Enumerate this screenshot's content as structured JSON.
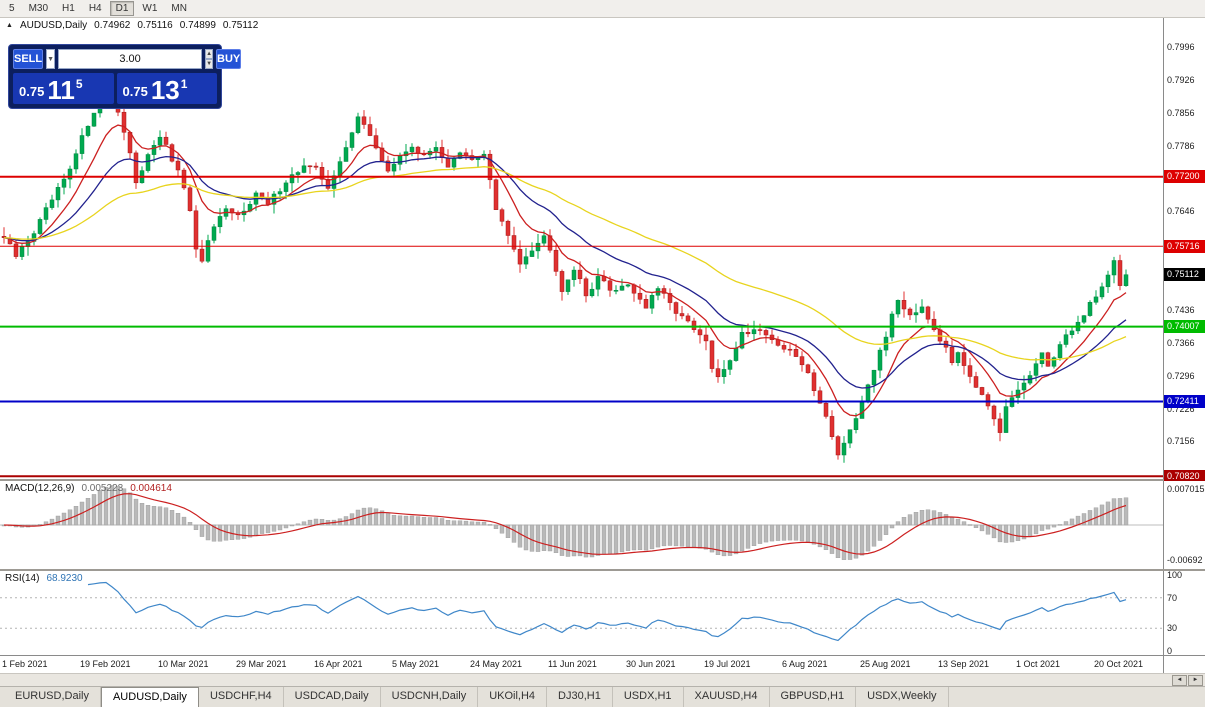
{
  "toolbar": {
    "timeframes": [
      {
        "label": "5",
        "active": false
      },
      {
        "label": "M30",
        "active": false
      },
      {
        "label": "H1",
        "active": false
      },
      {
        "label": "H4",
        "active": false
      },
      {
        "label": "D1",
        "active": true
      },
      {
        "label": "W1",
        "active": false
      },
      {
        "label": "MN",
        "active": false
      }
    ]
  },
  "chart": {
    "symbol_title": "AUDUSD,Daily",
    "ohlc": {
      "open": "0.74962",
      "high": "0.75116",
      "low": "0.74899",
      "close": "0.75112"
    }
  },
  "trade_panel": {
    "sell_label": "SELL",
    "buy_label": "BUY",
    "volume": "3.00",
    "sell_price": {
      "prefix": "0.75",
      "big": "11",
      "sup": "5"
    },
    "buy_price": {
      "prefix": "0.75",
      "big": "13",
      "sup": "1"
    }
  },
  "chart_data": {
    "type": "candlestick",
    "symbol": "AUDUSD",
    "timeframe": "Daily",
    "title": "AUDUSD,Daily",
    "candle_count": 188,
    "last_close": 0.75112,
    "bull_color": "#00a94f",
    "bull_stroke": "#008540",
    "bear_color": "#e03030",
    "bear_stroke": "#a01818",
    "y_axis": {
      "min": 0.7076,
      "max": 0.8058,
      "ticks": [
        "0.7996",
        "0.7926",
        "0.7856",
        "0.7786",
        "0.7716",
        "0.7646",
        "0.7576",
        "0.7506",
        "0.7436",
        "0.7366",
        "0.7296",
        "0.7226",
        "0.7156"
      ]
    },
    "hlines": [
      {
        "value": 0.772,
        "label": "0.77200",
        "color": "#dd0000",
        "width": 2
      },
      {
        "value": 0.75716,
        "label": "0.75716",
        "color": "#dd0000",
        "width": 1
      },
      {
        "value": 0.74007,
        "label": "0.74007",
        "color": "#00bb00",
        "width": 2
      },
      {
        "value": 0.72411,
        "label": "0.72411",
        "color": "#0000c8",
        "width": 2
      },
      {
        "value": 0.7082,
        "label": "0.70820",
        "color": "#aa0000",
        "width": 2
      }
    ],
    "current_price": {
      "value": 0.75112,
      "label": "0.75112",
      "label_bg": "#000000"
    },
    "moving_averages": [
      {
        "name": "fast",
        "period": 9,
        "color": "#cc2020"
      },
      {
        "name": "medium",
        "period": 21,
        "color": "#22228e"
      },
      {
        "name": "slow",
        "period": 50,
        "color": "#e8d41e"
      }
    ],
    "date_labels": [
      "1 Feb 2021",
      "19 Feb 2021",
      "10 Mar 2021",
      "29 Mar 2021",
      "16 Apr 2021",
      "5 May 2021",
      "24 May 2021",
      "11 Jun 2021",
      "30 Jun 2021",
      "19 Jul 2021",
      "6 Aug 2021",
      "25 Aug 2021",
      "13 Sep 2021",
      "1 Oct 2021",
      "20 Oct 2021"
    ],
    "label_every_n_candles": 13,
    "price_anchors": [
      [
        0,
        0.759
      ],
      [
        2,
        0.755
      ],
      [
        5,
        0.7602
      ],
      [
        8,
        0.767
      ],
      [
        11,
        0.7732
      ],
      [
        13,
        0.7802
      ],
      [
        15,
        0.7862
      ],
      [
        17,
        0.7905
      ],
      [
        19,
        0.7862
      ],
      [
        21,
        0.7768
      ],
      [
        22,
        0.77
      ],
      [
        24,
        0.7772
      ],
      [
        26,
        0.7808
      ],
      [
        28,
        0.7755
      ],
      [
        30,
        0.77
      ],
      [
        31,
        0.7642
      ],
      [
        32,
        0.756
      ],
      [
        33,
        0.7545
      ],
      [
        35,
        0.7612
      ],
      [
        37,
        0.7645
      ],
      [
        39,
        0.7636
      ],
      [
        42,
        0.7684
      ],
      [
        44,
        0.766
      ],
      [
        47,
        0.7712
      ],
      [
        50,
        0.7742
      ],
      [
        52,
        0.7734
      ],
      [
        54,
        0.77
      ],
      [
        56,
        0.7748
      ],
      [
        58,
        0.7812
      ],
      [
        59,
        0.7852
      ],
      [
        60,
        0.7836
      ],
      [
        62,
        0.7776
      ],
      [
        64,
        0.7734
      ],
      [
        66,
        0.776
      ],
      [
        68,
        0.7788
      ],
      [
        70,
        0.776
      ],
      [
        72,
        0.7786
      ],
      [
        74,
        0.7742
      ],
      [
        76,
        0.7768
      ],
      [
        78,
        0.7754
      ],
      [
        80,
        0.7772
      ],
      [
        82,
        0.765
      ],
      [
        84,
        0.7592
      ],
      [
        86,
        0.754
      ],
      [
        88,
        0.7568
      ],
      [
        90,
        0.7592
      ],
      [
        91,
        0.757
      ],
      [
        93,
        0.748
      ],
      [
        95,
        0.7526
      ],
      [
        97,
        0.7466
      ],
      [
        99,
        0.7508
      ],
      [
        101,
        0.7478
      ],
      [
        104,
        0.7492
      ],
      [
        107,
        0.7442
      ],
      [
        109,
        0.7482
      ],
      [
        111,
        0.7448
      ],
      [
        113,
        0.7422
      ],
      [
        115,
        0.7392
      ],
      [
        117,
        0.7368
      ],
      [
        118,
        0.7312
      ],
      [
        119,
        0.7288
      ],
      [
        121,
        0.7332
      ],
      [
        123,
        0.7386
      ],
      [
        126,
        0.7398
      ],
      [
        128,
        0.7372
      ],
      [
        130,
        0.7355
      ],
      [
        132,
        0.7338
      ],
      [
        134,
        0.7298
      ],
      [
        136,
        0.7242
      ],
      [
        138,
        0.7172
      ],
      [
        139,
        0.7128
      ],
      [
        140,
        0.7152
      ],
      [
        142,
        0.7198
      ],
      [
        143,
        0.7242
      ],
      [
        145,
        0.7312
      ],
      [
        147,
        0.7378
      ],
      [
        148,
        0.7432
      ],
      [
        149,
        0.7458
      ],
      [
        151,
        0.7428
      ],
      [
        153,
        0.7446
      ],
      [
        155,
        0.7398
      ],
      [
        156,
        0.7375
      ],
      [
        158,
        0.7325
      ],
      [
        159,
        0.735
      ],
      [
        161,
        0.7298
      ],
      [
        163,
        0.7252
      ],
      [
        165,
        0.7198
      ],
      [
        166,
        0.7172
      ],
      [
        167,
        0.7228
      ],
      [
        169,
        0.7265
      ],
      [
        171,
        0.7298
      ],
      [
        173,
        0.7338
      ],
      [
        174,
        0.7318
      ],
      [
        176,
        0.7362
      ],
      [
        178,
        0.7396
      ],
      [
        180,
        0.7424
      ],
      [
        181,
        0.7452
      ],
      [
        182,
        0.7468
      ],
      [
        184,
        0.7508
      ],
      [
        185,
        0.7545
      ],
      [
        186,
        0.7488
      ],
      [
        187,
        0.75112
      ]
    ]
  },
  "macd": {
    "name": "MACD(12,26,9)",
    "fast": 12,
    "slow": 26,
    "signal": 9,
    "value_main": "0.005223",
    "value_signal": "0.004614",
    "range": 0.0082,
    "bar_color": "#b9b9b9",
    "bar_stroke": "#9a9a9a",
    "signal_color": "#cc2020",
    "zero_line_color": "#bdbdbd",
    "axis_labels": [
      {
        "text": "0.007015",
        "value": 0.007015
      },
      {
        "text": "-0.00692",
        "value": -0.00692
      }
    ]
  },
  "rsi": {
    "name": "RSI(14)",
    "period": 14,
    "value": "68.9230",
    "line_color": "#3f87c9",
    "level_color": "#b4b4b4",
    "levels": [
      70,
      30
    ],
    "axis_labels": [
      {
        "text": "100",
        "value": 100
      },
      {
        "text": "70",
        "value": 70
      },
      {
        "text": "30",
        "value": 30
      },
      {
        "text": "0",
        "value": 0
      }
    ]
  },
  "tabs": {
    "scroll_left_icon": "◄",
    "scroll_right_icon": "►",
    "items": [
      {
        "label": "EURUSD,Daily",
        "active": false
      },
      {
        "label": "AUDUSD,Daily",
        "active": true
      },
      {
        "label": "USDCHF,H4",
        "active": false
      },
      {
        "label": "USDCAD,Daily",
        "active": false
      },
      {
        "label": "USDCNH,Daily",
        "active": false
      },
      {
        "label": "UKOil,H4",
        "active": false
      },
      {
        "label": "DJ30,H1",
        "active": false
      },
      {
        "label": "USDX,H1",
        "active": false
      },
      {
        "label": "XAUUSD,H4",
        "active": false
      },
      {
        "label": "GBPUSD,H1",
        "active": false
      },
      {
        "label": "USDX,Weekly",
        "active": false
      }
    ]
  }
}
